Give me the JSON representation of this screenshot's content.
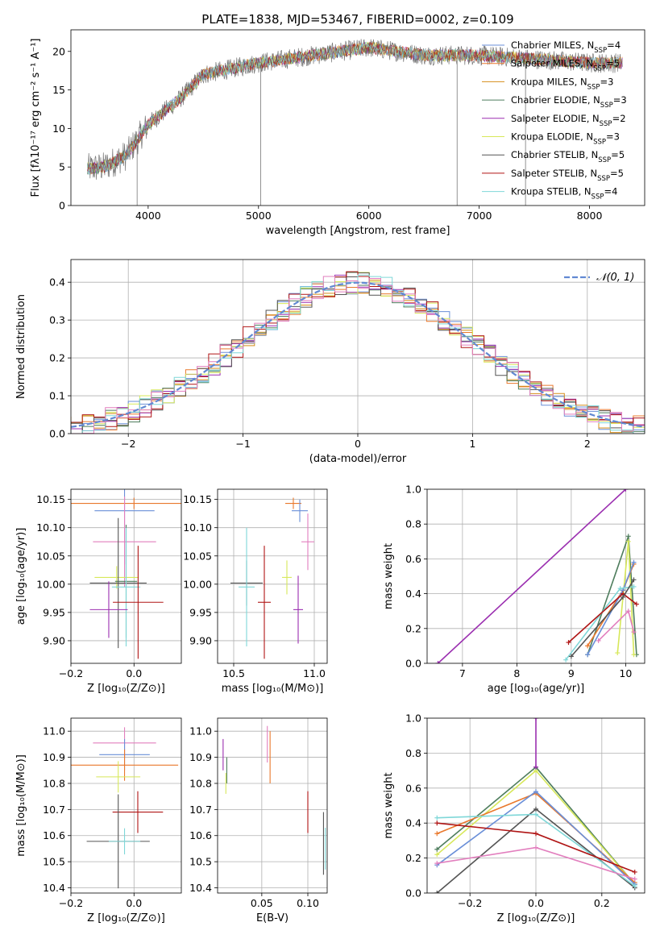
{
  "colors": {
    "chabrier_miles": "#6a8fd8",
    "salpeter_miles": "#e9782c",
    "kroupa_miles": "#d68d1a",
    "chabrier_elodie": "#4e7d5d",
    "salpeter_elodie": "#9b2fb0",
    "kroupa_elodie": "#d7e85a",
    "chabrier_stelib": "#545454",
    "salpeter_stelib": "#b01515",
    "kroupa_stelib": "#7fd7d8",
    "pink": "#e27fbe",
    "gaussian": "#6289d2",
    "grid": "#b0b0b0"
  },
  "chart_data": [
    {
      "id": "spectrum",
      "type": "line",
      "title": "PLATE=1838, MJD=53467, FIBERID=0002, z=0.109",
      "xlabel": "wavelength [Angstrom, rest frame]",
      "ylabel": "Flux [fλ10⁻¹⁷ erg cm⁻² s⁻¹ A⁻¹]",
      "xlim": [
        3300,
        8500
      ],
      "ylim": [
        0,
        22.8
      ],
      "xticks": [
        4000,
        5000,
        6000,
        7000,
        8000
      ],
      "yticks": [
        0,
        5,
        10,
        15,
        20
      ],
      "grid": false,
      "legend_position": "right",
      "series": [
        {
          "name": "Chabrier MILES, N_SSP=4",
          "legend": "Chabrier MILES, N",
          "nssp": "4",
          "color_key": "chabrier_miles"
        },
        {
          "name": "Salpeter MILES, N_SSP=5",
          "legend": "Salpeter MILES, N",
          "nssp": "5",
          "color_key": "salpeter_miles"
        },
        {
          "name": "Kroupa MILES, N_SSP=3",
          "legend": "Kroupa MILES, N",
          "nssp": "3",
          "color_key": "kroupa_miles"
        },
        {
          "name": "Chabrier ELODIE, N_SSP=3",
          "legend": "Chabrier ELODIE, N",
          "nssp": "3",
          "color_key": "chabrier_elodie"
        },
        {
          "name": "Salpeter ELODIE, N_SSP=2",
          "legend": "Salpeter ELODIE, N",
          "nssp": "2",
          "color_key": "salpeter_elodie"
        },
        {
          "name": "Kroupa ELODIE, N_SSP=3",
          "legend": "Kroupa ELODIE, N",
          "nssp": "3",
          "color_key": "kroupa_elodie"
        },
        {
          "name": "Chabrier STELIB, N_SSP=5",
          "legend": "Chabrier STELIB, N",
          "nssp": "5",
          "color_key": "chabrier_stelib"
        },
        {
          "name": "Salpeter STELIB, N_SSP=5",
          "legend": "Salpeter STELIB, N",
          "nssp": "5",
          "color_key": "salpeter_stelib"
        },
        {
          "name": "Kroupa STELIB, N_SSP=4",
          "legend": "Kroupa STELIB, N",
          "nssp": "4",
          "color_key": "kroupa_stelib"
        }
      ],
      "data_series": "observed",
      "continuum": {
        "wavelength": [
          3450,
          3600,
          3800,
          4000,
          4300,
          4500,
          5000,
          5500,
          6000,
          6500,
          7000,
          7500,
          8000,
          8300
        ],
        "flux": [
          4.8,
          5.0,
          6.5,
          10.5,
          14.0,
          17.0,
          18.5,
          19.5,
          20.5,
          19.5,
          19.5,
          19.0,
          18.5,
          18.5
        ]
      },
      "spikes": [
        {
          "wavelength": 3900,
          "flux": 0
        },
        {
          "wavelength": 5020,
          "flux": 0
        },
        {
          "wavelength": 6800,
          "flux": 0
        },
        {
          "wavelength": 7420,
          "flux": 0
        }
      ]
    },
    {
      "id": "residuals",
      "type": "line",
      "xlabel": "(data-model)/error",
      "ylabel": "Normed distribution",
      "xlim": [
        -2.5,
        2.5
      ],
      "ylim": [
        0,
        0.46
      ],
      "xticks": [
        -2,
        -1,
        0,
        1,
        2
      ],
      "yticks": [
        0.0,
        0.1,
        0.2,
        0.3,
        0.4
      ],
      "grid": true,
      "legend_position": "top-right",
      "gaussian_label": "𝒩(0, 1)",
      "bin_width": 0.1
    },
    {
      "id": "age_vs_Z",
      "type": "scatter",
      "xlabel": "Z [log₁₀(Z/Z⊙)]",
      "ylabel": "age  [log₁₀(age/yr)]",
      "xlim": [
        -0.2,
        0.15
      ],
      "ylim": [
        9.86,
        10.168
      ],
      "xticks": [
        -0.2,
        0.0
      ],
      "yticks": [
        9.9,
        9.95,
        10.0,
        10.05,
        10.1,
        10.15
      ],
      "grid": true,
      "points": [
        {
          "color_key": "salpeter_miles",
          "x": 0.0,
          "xerr": 0.2,
          "y": 10.143,
          "yerr": 0.01
        },
        {
          "color_key": "chabrier_miles",
          "x": -0.03,
          "xerr": 0.095,
          "y": 10.13,
          "yerr": 0.095
        },
        {
          "color_key": "pink",
          "x": -0.03,
          "xerr": 0.1,
          "y": 10.075,
          "yerr": 0.08
        },
        {
          "color_key": "kroupa_elodie",
          "x": -0.055,
          "xerr": 0.07,
          "y": 10.012,
          "yerr": 0.02
        },
        {
          "color_key": "chabrier_elodie",
          "x": -0.025,
          "xerr": 0.035,
          "y": 10.005,
          "yerr": 0.1
        },
        {
          "color_key": "chabrier_stelib",
          "x": -0.05,
          "xerr": 0.09,
          "y": 10.002,
          "yerr": 0.115
        },
        {
          "color_key": "kroupa_stelib",
          "x": -0.025,
          "xerr": 0.045,
          "y": 9.995,
          "yerr": 0.105
        },
        {
          "color_key": "salpeter_stelib",
          "x": 0.013,
          "xerr": 0.08,
          "y": 9.968,
          "yerr": 0.1
        },
        {
          "color_key": "salpeter_elodie",
          "x": -0.08,
          "xerr": 0.06,
          "y": 9.955,
          "yerr": 0.05
        }
      ]
    },
    {
      "id": "age_vs_mass",
      "type": "scatter",
      "xlabel": "mass [log₁₀(M/M⊙)]",
      "xlim": [
        10.4,
        11.08
      ],
      "ylim": [
        9.86,
        10.168
      ],
      "xticks": [
        10.5,
        11.0
      ],
      "yticks": [
        9.9,
        9.95,
        10.0,
        10.05,
        10.1,
        10.15
      ],
      "grid": true,
      "points": [
        {
          "color_key": "salpeter_miles",
          "x": 10.87,
          "xerr": 0.05,
          "y": 10.143,
          "yerr": 0.01
        },
        {
          "color_key": "chabrier_miles",
          "x": 10.91,
          "xerr": 0.05,
          "y": 10.13,
          "yerr": 0.02
        },
        {
          "color_key": "pink",
          "x": 10.96,
          "xerr": 0.04,
          "y": 10.075,
          "yerr": 0.05
        },
        {
          "color_key": "kroupa_elodie",
          "x": 10.83,
          "xerr": 0.03,
          "y": 10.012,
          "yerr": 0.03
        },
        {
          "color_key": "chabrier_stelib",
          "x": 10.58,
          "xerr": 0.1,
          "y": 10.002,
          "yerr": 0.04
        },
        {
          "color_key": "kroupa_stelib",
          "x": 10.58,
          "xerr": 0.05,
          "y": 9.995,
          "yerr": 0.105
        },
        {
          "color_key": "salpeter_stelib",
          "x": 10.69,
          "xerr": 0.04,
          "y": 9.968,
          "yerr": 0.1
        },
        {
          "color_key": "salpeter_elodie",
          "x": 10.9,
          "xerr": 0.03,
          "y": 9.955,
          "yerr": 0.06
        }
      ]
    },
    {
      "id": "weight_vs_age",
      "type": "line",
      "xlabel": "age  [log₁₀(age/yr)]",
      "ylabel": "mass weight",
      "xlim": [
        6.35,
        10.35
      ],
      "ylim": [
        0,
        1
      ],
      "xticks": [
        7,
        8,
        9,
        10
      ],
      "yticks": [
        0.0,
        0.2,
        0.4,
        0.6,
        0.8,
        1.0
      ],
      "grid": true,
      "series": [
        {
          "color_key": "salpeter_elodie",
          "x": [
            6.55,
            10.0
          ],
          "y": [
            0.0,
            1.0
          ]
        },
        {
          "color_key": "chabrier_elodie",
          "x": [
            9.3,
            10.05,
            10.2
          ],
          "y": [
            0.05,
            0.73,
            0.05
          ]
        },
        {
          "color_key": "kroupa_elodie",
          "x": [
            9.85,
            10.05,
            10.15
          ],
          "y": [
            0.06,
            0.7,
            0.05
          ]
        },
        {
          "color_key": "salpeter_miles",
          "x": [
            9.3,
            9.95,
            10.15
          ],
          "y": [
            0.1,
            0.42,
            0.57
          ]
        },
        {
          "color_key": "chabrier_miles",
          "x": [
            9.3,
            9.95,
            10.15
          ],
          "y": [
            0.05,
            0.42,
            0.58
          ]
        },
        {
          "color_key": "kroupa_stelib",
          "x": [
            8.9,
            9.9,
            10.15
          ],
          "y": [
            0.02,
            0.43,
            0.44
          ]
        },
        {
          "color_key": "salpeter_stelib",
          "x": [
            8.95,
            9.95,
            10.2
          ],
          "y": [
            0.12,
            0.4,
            0.34
          ]
        },
        {
          "color_key": "chabrier_stelib",
          "x": [
            9.0,
            9.95,
            10.15
          ],
          "y": [
            0.04,
            0.38,
            0.48
          ]
        },
        {
          "color_key": "pink",
          "x": [
            9.5,
            10.05,
            10.15
          ],
          "y": [
            0.13,
            0.3,
            0.18
          ]
        }
      ]
    },
    {
      "id": "mass_vs_Z",
      "type": "scatter",
      "xlabel": "Z [log₁₀(Z/Z⊙)]",
      "ylabel": "mass [log₁₀(M/M⊙)]",
      "xlim": [
        -0.2,
        0.15
      ],
      "ylim": [
        10.38,
        11.05
      ],
      "xticks": [
        -0.2,
        0.0
      ],
      "yticks": [
        10.4,
        10.5,
        10.6,
        10.7,
        10.8,
        10.9,
        11.0
      ],
      "grid": true,
      "points": [
        {
          "color_key": "pink",
          "x": -0.03,
          "xerr": 0.1,
          "y": 10.955,
          "yerr": 0.06
        },
        {
          "color_key": "chabrier_miles",
          "x": -0.03,
          "xerr": 0.08,
          "y": 10.91,
          "yerr": 0.06
        },
        {
          "color_key": "salpeter_miles",
          "x": -0.03,
          "xerr": 0.17,
          "y": 10.87,
          "yerr": 0.06
        },
        {
          "color_key": "kroupa_elodie",
          "x": -0.05,
          "xerr": 0.07,
          "y": 10.825,
          "yerr": 0.06
        },
        {
          "color_key": "salpeter_stelib",
          "x": 0.012,
          "xerr": 0.08,
          "y": 10.69,
          "yerr": 0.08
        },
        {
          "color_key": "chabrier_stelib",
          "x": -0.05,
          "xerr": 0.1,
          "y": 10.578,
          "yerr": 0.18
        },
        {
          "color_key": "kroupa_stelib",
          "x": -0.03,
          "xerr": 0.05,
          "y": 10.578,
          "yerr": 0.05
        }
      ]
    },
    {
      "id": "mass_vs_EBV",
      "type": "scatter",
      "xlabel": "E(B-V)",
      "xlim": [
        0.002,
        0.121
      ],
      "ylim": [
        10.38,
        11.05
      ],
      "xticks": [
        0.05,
        0.1
      ],
      "yticks": [
        10.4,
        10.5,
        10.6,
        10.7,
        10.8,
        10.9,
        11.0
      ],
      "grid": true,
      "points": [
        {
          "color_key": "salpeter_elodie",
          "x": 0.008,
          "y": 10.91,
          "yerr": 0.06
        },
        {
          "color_key": "chabrier_elodie",
          "x": 0.012,
          "y": 10.85,
          "yerr": 0.05
        },
        {
          "color_key": "kroupa_elodie",
          "x": 0.011,
          "y": 10.8,
          "yerr": 0.04
        },
        {
          "color_key": "pink",
          "x": 0.056,
          "y": 10.95,
          "yerr": 0.07
        },
        {
          "color_key": "salpeter_miles",
          "x": 0.059,
          "y": 10.9,
          "yerr": 0.1
        },
        {
          "color_key": "salpeter_stelib",
          "x": 0.1,
          "y": 10.69,
          "yerr": 0.08
        },
        {
          "color_key": "chabrier_stelib",
          "x": 0.117,
          "y": 10.57,
          "yerr": 0.12
        },
        {
          "color_key": "kroupa_stelib",
          "x": 0.119,
          "y": 10.55,
          "yerr": 0.08
        }
      ]
    },
    {
      "id": "weight_vs_Z",
      "type": "line",
      "xlabel": "Z [log₁₀(Z/Z⊙)]",
      "ylabel": "mass weight",
      "xlim": [
        -0.33,
        0.33
      ],
      "ylim": [
        0,
        1
      ],
      "xticks": [
        -0.2,
        0.0,
        0.2
      ],
      "yticks": [
        0.0,
        0.2,
        0.4,
        0.6,
        0.8,
        1.0
      ],
      "grid": true,
      "series": [
        {
          "color_key": "chabrier_elodie",
          "x": [
            -0.3,
            0.0,
            0.3
          ],
          "y": [
            0.25,
            0.72,
            0.05
          ]
        },
        {
          "color_key": "kroupa_elodie",
          "x": [
            -0.3,
            0.0,
            0.3
          ],
          "y": [
            0.22,
            0.7,
            0.05
          ]
        },
        {
          "color_key": "salpeter_miles",
          "x": [
            -0.3,
            0.0,
            0.3
          ],
          "y": [
            0.34,
            0.57,
            0.06
          ]
        },
        {
          "color_key": "chabrier_miles",
          "x": [
            -0.3,
            0.0,
            0.3
          ],
          "y": [
            0.16,
            0.58,
            0.05
          ]
        },
        {
          "color_key": "chabrier_stelib",
          "x": [
            -0.3,
            0.0,
            0.3
          ],
          "y": [
            0.0,
            0.48,
            0.03
          ]
        },
        {
          "color_key": "kroupa_stelib",
          "x": [
            -0.3,
            0.0,
            0.3
          ],
          "y": [
            0.43,
            0.45,
            0.04
          ]
        },
        {
          "color_key": "salpeter_stelib",
          "x": [
            -0.3,
            0.0,
            0.3
          ],
          "y": [
            0.4,
            0.34,
            0.12
          ]
        },
        {
          "color_key": "pink",
          "x": [
            -0.3,
            0.0,
            0.3
          ],
          "y": [
            0.17,
            0.26,
            0.08
          ]
        },
        {
          "color_key": "salpeter_elodie",
          "x": [
            0.0,
            0.0
          ],
          "y": [
            0.72,
            1.0
          ]
        }
      ]
    }
  ]
}
